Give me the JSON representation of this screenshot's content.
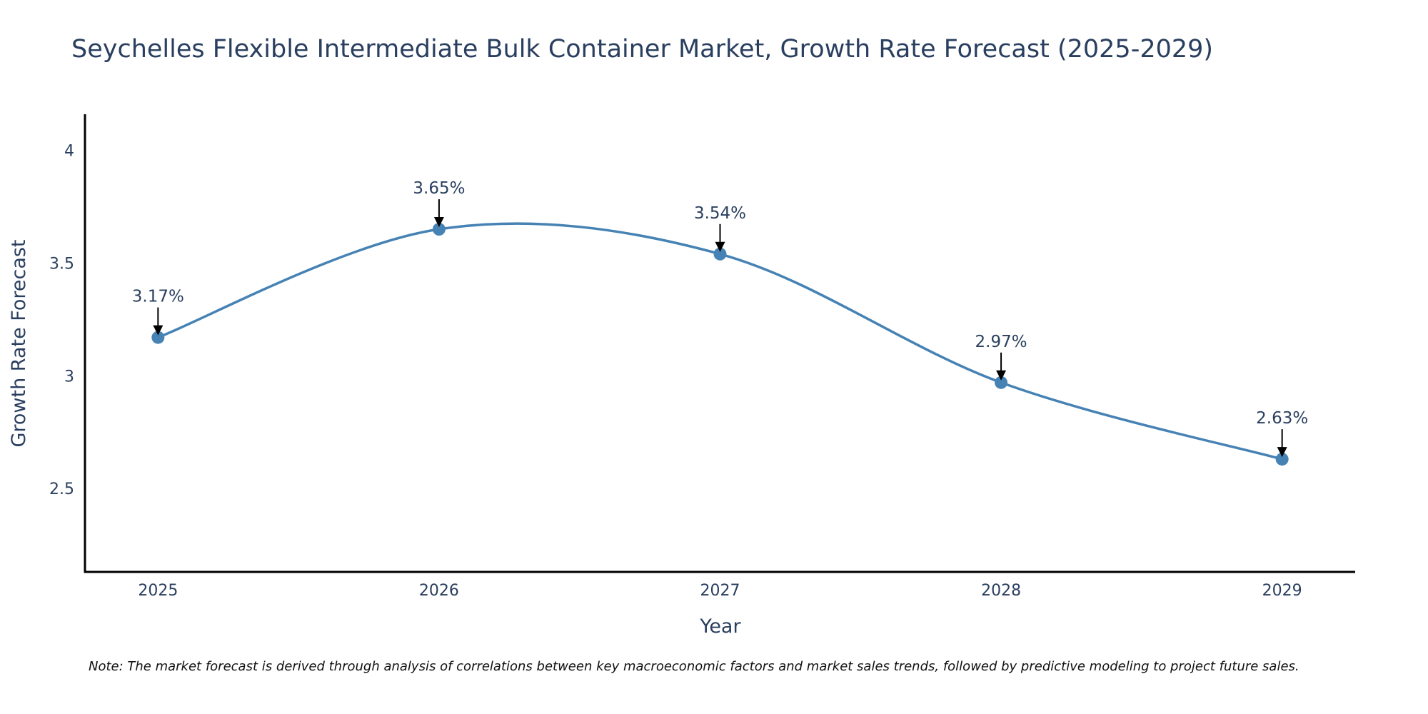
{
  "chart_data": {
    "type": "line",
    "title": "Seychelles Flexible Intermediate Bulk Container Market, Growth Rate Forecast (2025-2029)",
    "xlabel": "Year",
    "ylabel": "Growth Rate Forecast",
    "x": [
      2025,
      2026,
      2027,
      2028,
      2029
    ],
    "x_tick_labels": [
      "2025",
      "2026",
      "2027",
      "2028",
      "2029"
    ],
    "y_ticks": [
      2.5,
      3,
      3.5,
      4
    ],
    "y_tick_labels": [
      "2.5",
      "3",
      "3.5",
      "4"
    ],
    "xlim": [
      2024.74,
      2029.26
    ],
    "ylim": [
      2.13,
      4.16
    ],
    "grid": false,
    "legend": "none",
    "series": [
      {
        "name": "Growth Rate Forecast",
        "values": [
          3.17,
          3.65,
          3.54,
          2.97,
          2.63
        ],
        "color": "#4682b4",
        "line_shape": "spline",
        "markers": true
      }
    ],
    "annotations": [
      "3.17%",
      "3.65%",
      "3.54%",
      "2.97%",
      "2.63%"
    ],
    "note": "Note: The market forecast is derived through analysis of correlations between key macroeconomic factors and market sales trends, followed by predictive modeling to project future sales."
  },
  "colors": {
    "line": "#4682b4",
    "marker": "#4682b4",
    "text": "#2a3f5f",
    "axis": "#000000",
    "arrow": "#000000"
  }
}
